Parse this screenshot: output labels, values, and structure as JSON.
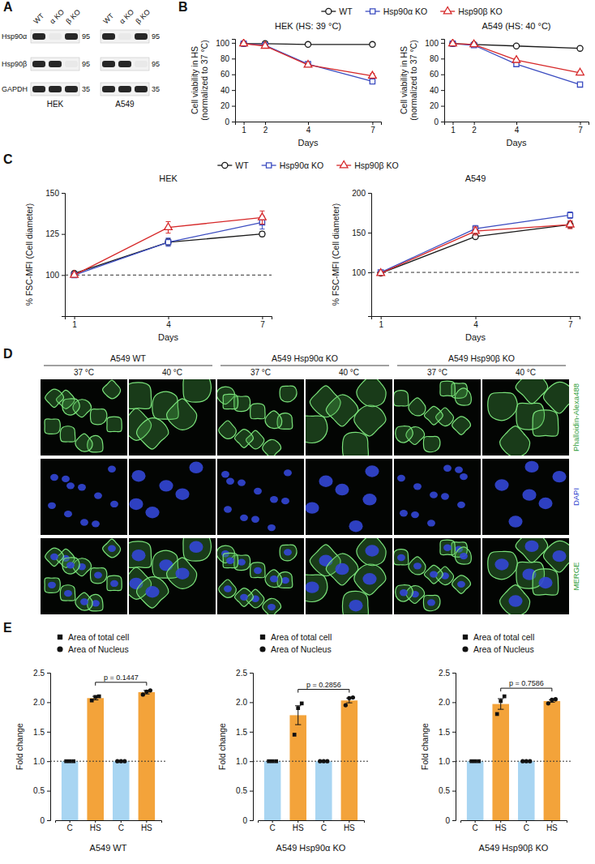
{
  "figure": {
    "panels": [
      "A",
      "B",
      "C",
      "D",
      "E"
    ],
    "blot": {
      "rows": [
        "Hsp90α",
        "Hsp90β",
        "GAPDH"
      ],
      "lanes": [
        "WT",
        "α KO",
        "β KO"
      ],
      "blots": [
        {
          "cell": "HEK",
          "mw": [
            95,
            95,
            35
          ],
          "bands": [
            [
              1,
              0,
              1
            ],
            [
              1,
              1,
              0
            ],
            [
              1,
              1,
              1
            ]
          ]
        },
        {
          "cell": "A549",
          "mw": [
            95,
            95,
            35
          ],
          "bands": [
            [
              1,
              0,
              1
            ],
            [
              1,
              1,
              0
            ],
            [
              1,
              1,
              1
            ]
          ]
        }
      ]
    },
    "microscopy": {
      "groups": [
        "A549 WT",
        "A549 Hsp90α KO",
        "A549 Hsp90β KO"
      ],
      "conditions": [
        "37 °C",
        "40 °C"
      ],
      "channels": [
        "Phalloidin-Alexa488",
        "DAPI",
        "MERGE"
      ]
    }
  },
  "chart_data": [
    {
      "type": "line",
      "title": "HEK (HS: 39 °C)",
      "x_label": "Days",
      "y_label": "Cell viability in HS\n(normalized to 37 °C)",
      "x": [
        1,
        2,
        4,
        7
      ],
      "xlim": [
        0.6,
        7.4
      ],
      "xticks": [
        1,
        2,
        4,
        7
      ],
      "ylim": [
        0,
        105
      ],
      "yticks": [
        0,
        20,
        40,
        60,
        80,
        100
      ],
      "legend": "top",
      "series": [
        {
          "name": "WT",
          "color": "#1a1a1a",
          "marker": "circle",
          "values": [
            99,
            99,
            98,
            98
          ],
          "errors": [
            0.5,
            0.5,
            0.6,
            0.7
          ]
        },
        {
          "name": "Hsp90α KO",
          "color": "#3b4cc0",
          "marker": "square",
          "values": [
            99,
            97,
            73,
            51
          ],
          "errors": [
            0.5,
            0.8,
            2,
            2
          ]
        },
        {
          "name": "Hsp90β KO",
          "color": "#d62728",
          "marker": "triangle",
          "values": [
            99,
            96,
            72,
            58
          ],
          "errors": [
            0.5,
            0.8,
            1.5,
            3
          ]
        }
      ]
    },
    {
      "type": "line",
      "title": "A549 (HS: 40 °C)",
      "x_label": "Days",
      "y_label": "Cell viability in HS\n(normalized to 37 °C)",
      "x": [
        1,
        2,
        4,
        7
      ],
      "xlim": [
        0.6,
        7.4
      ],
      "xticks": [
        1,
        2,
        4,
        7
      ],
      "ylim": [
        0,
        105
      ],
      "yticks": [
        0,
        20,
        40,
        60,
        80,
        100
      ],
      "series": [
        {
          "color": "#1a1a1a",
          "marker": "circle",
          "values": [
            99,
            98,
            96,
            93
          ],
          "errors": [
            0.5,
            0.6,
            0.8,
            1
          ]
        },
        {
          "color": "#3b4cc0",
          "marker": "square",
          "values": [
            99,
            97,
            73,
            47
          ],
          "errors": [
            0.5,
            0.8,
            2,
            2
          ]
        },
        {
          "color": "#d62728",
          "marker": "triangle",
          "values": [
            99,
            98,
            78,
            62
          ],
          "errors": [
            0.5,
            0.8,
            2,
            2
          ]
        }
      ]
    },
    {
      "type": "line",
      "title": "HEK",
      "x_label": "Days",
      "y_label": "% FSC-MFI (Cell diameter)",
      "x": [
        1,
        4,
        7
      ],
      "xlim": [
        0.7,
        7.3
      ],
      "xticks": [
        1,
        4,
        7
      ],
      "ylim": [
        75,
        150
      ],
      "yticks": [
        100,
        125,
        150
      ],
      "reference_line": 100,
      "legend": "top",
      "series": [
        {
          "name": "WT",
          "color": "#1a1a1a",
          "marker": "circle",
          "values": [
            101,
            120,
            125
          ],
          "errors": [
            1,
            2,
            1.5
          ]
        },
        {
          "name": "Hsp90α KO",
          "color": "#3b4cc0",
          "marker": "square",
          "values": [
            100,
            120,
            132
          ],
          "errors": [
            1,
            2.5,
            4
          ]
        },
        {
          "name": "Hsp90β KO",
          "color": "#d62728",
          "marker": "triangle",
          "values": [
            100,
            129,
            135
          ],
          "errors": [
            1,
            3.5,
            4
          ]
        }
      ]
    },
    {
      "type": "line",
      "title": "A549",
      "x_label": "Days",
      "y_label": "% FSC-MFI (Cell diameter)",
      "x": [
        1,
        4,
        7
      ],
      "xlim": [
        0.7,
        7.3
      ],
      "xticks": [
        1,
        4,
        7
      ],
      "ylim": [
        45,
        200
      ],
      "yticks": [
        100,
        150,
        200
      ],
      "reference_line": 100,
      "series": [
        {
          "color": "#1a1a1a",
          "marker": "circle",
          "values": [
            99,
            145,
            160
          ],
          "errors": [
            1,
            2,
            4
          ]
        },
        {
          "color": "#3b4cc0",
          "marker": "square",
          "values": [
            100,
            155,
            172
          ],
          "errors": [
            1,
            4,
            4
          ]
        },
        {
          "color": "#d62728",
          "marker": "triangle",
          "values": [
            99,
            152,
            160
          ],
          "errors": [
            1,
            5,
            5
          ]
        }
      ]
    },
    {
      "type": "bar",
      "x_label": "A549 WT",
      "y_label": "Fold change",
      "categories": [
        "C",
        "HS",
        "C",
        "HS"
      ],
      "colors": [
        "#a8d5f2",
        "#f3a33a",
        "#a8d5f2",
        "#f3a33a"
      ],
      "ylim": [
        0,
        2.5
      ],
      "yticks": [
        0,
        0.5,
        {
          "value": 1,
          "label": "1.0"
        },
        1.5,
        {
          "value": 2,
          "label": "2.0"
        },
        2.5
      ],
      "reference_line": 1,
      "annotations": [
        "p = 0.1447"
      ],
      "legend": "top left",
      "series": [
        {
          "name": "Area of total cell",
          "marker": "square",
          "values": [
            1,
            2.07,
            null,
            null
          ],
          "errors": [
            0,
            0.03,
            null,
            null
          ],
          "points": [
            [
              1,
              1,
              1
            ],
            [
              2.03,
              2.09,
              2.1
            ],
            null,
            null
          ]
        },
        {
          "name": "Area of Nucleus",
          "marker": "circle",
          "values": [
            null,
            null,
            1,
            2.17
          ],
          "errors": [
            null,
            null,
            0,
            0.03
          ],
          "points": [
            null,
            null,
            [
              1,
              1,
              1
            ],
            [
              2.13,
              2.18,
              2.2
            ]
          ]
        }
      ]
    },
    {
      "type": "bar",
      "x_label": "A549 Hsp90α KO",
      "y_label": "Fold change",
      "categories": [
        "C",
        "HS",
        "C",
        "HS"
      ],
      "colors": [
        "#a8d5f2",
        "#f3a33a",
        "#a8d5f2",
        "#f3a33a"
      ],
      "ylim": [
        0,
        2.5
      ],
      "yticks": [
        0,
        0.5,
        {
          "value": 1,
          "label": "1.0"
        },
        1.5,
        {
          "value": 2,
          "label": "2.0"
        },
        2.5
      ],
      "reference_line": 1,
      "annotations": [
        "p = 0.2856"
      ],
      "legend": "top left",
      "series": [
        {
          "name": "Area of total cell",
          "marker": "square",
          "values": [
            1,
            1.78,
            null,
            null
          ],
          "errors": [
            0,
            0.16,
            null,
            null
          ],
          "points": [
            [
              1,
              1,
              1
            ],
            [
              1.45,
              1.9,
              1.98
            ],
            null,
            null
          ]
        },
        {
          "name": "Area of Nucleus",
          "marker": "circle",
          "values": [
            null,
            null,
            1,
            2.03
          ],
          "errors": [
            null,
            null,
            0,
            0.04
          ],
          "points": [
            null,
            null,
            [
              1,
              1,
              1
            ],
            [
              1.95,
              2.07,
              2.08
            ]
          ]
        }
      ]
    },
    {
      "type": "bar",
      "x_label": "A549 Hsp90β KO",
      "y_label": "Fold change",
      "categories": [
        "C",
        "HS",
        "C",
        "HS"
      ],
      "colors": [
        "#a8d5f2",
        "#f3a33a",
        "#a8d5f2",
        "#f3a33a"
      ],
      "ylim": [
        0,
        2.5
      ],
      "yticks": [
        0,
        0.5,
        {
          "value": 1,
          "label": "1.0"
        },
        1.5,
        {
          "value": 2,
          "label": "2.0"
        },
        2.5
      ],
      "reference_line": 1,
      "annotations": [
        "p = 0.7586"
      ],
      "legend": "top left",
      "series": [
        {
          "name": "Area of total cell",
          "marker": "square",
          "values": [
            1,
            1.97,
            null,
            null
          ],
          "errors": [
            0,
            0.09,
            null,
            null
          ],
          "points": [
            [
              1,
              1,
              1
            ],
            [
              1.8,
              2.02,
              2.1
            ],
            null,
            null
          ]
        },
        {
          "name": "Area of Nucleus",
          "marker": "circle",
          "values": [
            null,
            null,
            1,
            2.02
          ],
          "errors": [
            null,
            null,
            0,
            0.02
          ],
          "points": [
            null,
            null,
            [
              1,
              1,
              1
            ],
            [
              1.98,
              2.04,
              2.05
            ]
          ]
        }
      ]
    }
  ]
}
